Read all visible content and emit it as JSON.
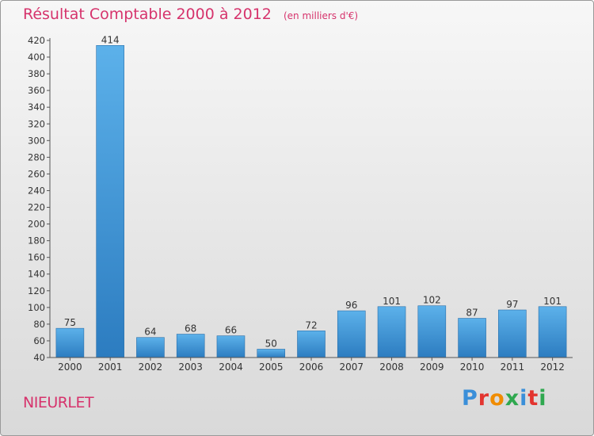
{
  "header": {
    "title": "Résultat Comptable 2000 à 2012",
    "unit": "(en milliers d'€)"
  },
  "footer": {
    "commune": "NIEURLET",
    "brand": [
      "P",
      "r",
      "o",
      "x",
      "i",
      "t",
      "i"
    ]
  },
  "colors": {
    "title": "#d6336c",
    "bar_light": "#5aaee8",
    "bar_dark": "#2f7fc2",
    "brand": [
      "#3a8fd9",
      "#e3342f",
      "#f08c00",
      "#2fa84f",
      "#3a8fd9",
      "#e3342f",
      "#2fa84f"
    ]
  },
  "chart_data": {
    "type": "bar",
    "title": "Résultat Comptable 2000 à 2012",
    "xlabel": "",
    "ylabel": "(en milliers d'€)",
    "categories": [
      "2000",
      "2001",
      "2002",
      "2003",
      "2004",
      "2005",
      "2006",
      "2007",
      "2008",
      "2009",
      "2010",
      "2011",
      "2012"
    ],
    "values": [
      75,
      414,
      64,
      68,
      66,
      50,
      72,
      96,
      101,
      102,
      87,
      97,
      101
    ],
    "ylim": [
      40,
      420
    ],
    "yticks": [
      40,
      60,
      80,
      100,
      120,
      140,
      160,
      180,
      200,
      220,
      240,
      260,
      280,
      300,
      320,
      340,
      360,
      380,
      400,
      420
    ],
    "grid": false
  }
}
